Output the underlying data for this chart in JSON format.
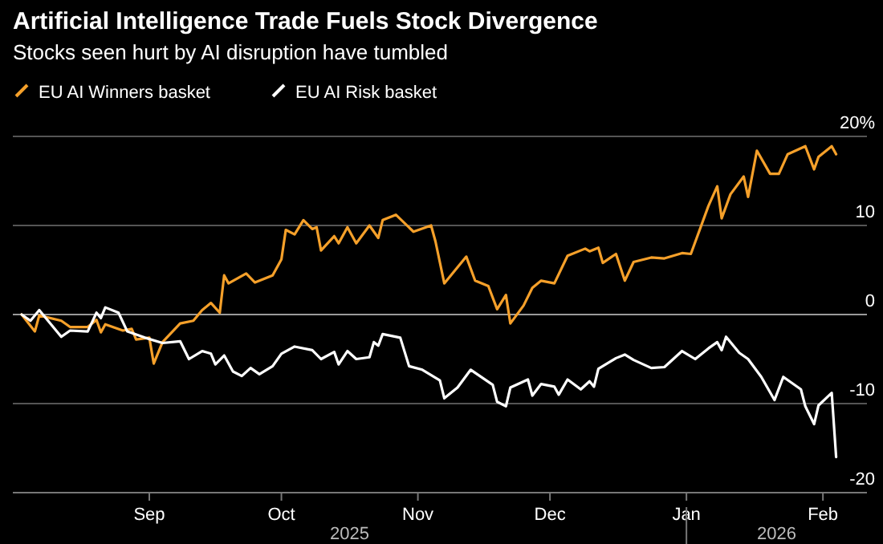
{
  "chart_data": {
    "type": "line",
    "title": "Artificial Intelligence Trade Fuels Stock Divergence",
    "subtitle": "Stocks seen hurt by AI disruption have tumbled",
    "annotations": [
      "2025",
      "2026"
    ],
    "legend": "top left",
    "grid": "y",
    "line_style": "solid",
    "marker": "none",
    "xlim": [
      "2025-08-01",
      "2026-02-11"
    ],
    "xticks": [
      {
        "value": "2025-09-01",
        "label": "Sep"
      },
      {
        "value": "2025-10-01",
        "label": "Oct"
      },
      {
        "value": "2025-11-01",
        "label": "Nov"
      },
      {
        "value": "2025-12-01",
        "label": "Dec"
      },
      {
        "value": "2026-01-01",
        "label": "Jan"
      },
      {
        "value": "2026-02-01",
        "label": "Feb"
      }
    ],
    "ylim": [
      -20,
      20
    ],
    "yticks": [
      {
        "value": 20,
        "label": "20%"
      },
      10,
      0,
      -10,
      -20
    ],
    "series": [
      {
        "name": "EU AI Winners basket",
        "color": "#f5a02a",
        "x": [
          "2025-08-03",
          "2025-08-06",
          "2025-08-07",
          "2025-08-12",
          "2025-08-14",
          "2025-08-18",
          "2025-08-20",
          "2025-08-21",
          "2025-08-22",
          "2025-08-26",
          "2025-08-28",
          "2025-08-29",
          "2025-09-01",
          "2025-09-02",
          "2025-09-04",
          "2025-09-08",
          "2025-09-11",
          "2025-09-13",
          "2025-09-15",
          "2025-09-17",
          "2025-09-18",
          "2025-09-19",
          "2025-09-23",
          "2025-09-25",
          "2025-09-29",
          "2025-10-01",
          "2025-10-02",
          "2025-10-04",
          "2025-10-06",
          "2025-10-08",
          "2025-10-09",
          "2025-10-10",
          "2025-10-13",
          "2025-10-14",
          "2025-10-16",
          "2025-10-18",
          "2025-10-21",
          "2025-10-23",
          "2025-10-24",
          "2025-10-27",
          "2025-10-31",
          "2025-11-04",
          "2025-11-05",
          "2025-11-07",
          "2025-11-12",
          "2025-11-14",
          "2025-11-17",
          "2025-11-19",
          "2025-11-21",
          "2025-11-22",
          "2025-11-25",
          "2025-11-27",
          "2025-11-29",
          "2025-12-02",
          "2025-12-05",
          "2025-12-09",
          "2025-12-10",
          "2025-12-12",
          "2025-12-13",
          "2025-12-16",
          "2025-12-18",
          "2025-12-20",
          "2025-12-24",
          "2025-12-27",
          "2025-12-31",
          "2026-01-02",
          "2026-01-06",
          "2026-01-08",
          "2026-01-09",
          "2026-01-11",
          "2026-01-14",
          "2026-01-15",
          "2026-01-17",
          "2026-01-20",
          "2026-01-22",
          "2026-01-24",
          "2026-01-28",
          "2026-01-30",
          "2026-01-31",
          "2026-02-03",
          "2026-02-04"
        ],
        "values": [
          0,
          -1.9,
          -0.1,
          -0.7,
          -1.4,
          -1.4,
          -0.6,
          -2,
          -1.1,
          -1.8,
          -1.6,
          -2.8,
          -2.6,
          -5.5,
          -3.1,
          -1,
          -0.7,
          0.5,
          1.3,
          0.2,
          4.4,
          3.5,
          4.6,
          3.6,
          4.4,
          6.2,
          9.5,
          9,
          10.6,
          9.6,
          9.8,
          7.2,
          8.8,
          8,
          9.8,
          8,
          10,
          8.6,
          10.6,
          11.2,
          9.3,
          10,
          8.2,
          3.5,
          6.5,
          3.8,
          3.2,
          0.6,
          2.2,
          -1,
          1,
          3,
          3.8,
          3.5,
          6.6,
          7.4,
          7.1,
          7.5,
          5.8,
          6.8,
          3.8,
          5.9,
          6.4,
          6.3,
          6.9,
          6.8,
          12.2,
          14.4,
          10.8,
          13.5,
          15.5,
          13.2,
          18.4,
          15.8,
          15.8,
          18,
          18.9,
          16.3,
          17.7,
          18.9,
          18
        ]
      },
      {
        "name": "EU AI Risk basket",
        "color": "#ffffff",
        "x": [
          "2025-08-03",
          "2025-08-05",
          "2025-08-07",
          "2025-08-12",
          "2025-08-14",
          "2025-08-18",
          "2025-08-20",
          "2025-08-21",
          "2025-08-22",
          "2025-08-25",
          "2025-08-27",
          "2025-08-31",
          "2025-09-04",
          "2025-09-08",
          "2025-09-10",
          "2025-09-13",
          "2025-09-15",
          "2025-09-16",
          "2025-09-18",
          "2025-09-20",
          "2025-09-22",
          "2025-09-24",
          "2025-09-26",
          "2025-09-29",
          "2025-10-01",
          "2025-10-04",
          "2025-10-08",
          "2025-10-10",
          "2025-10-13",
          "2025-10-14",
          "2025-10-16",
          "2025-10-18",
          "2025-10-21",
          "2025-10-22",
          "2025-10-23",
          "2025-10-24",
          "2025-10-28",
          "2025-10-30",
          "2025-11-02",
          "2025-11-06",
          "2025-11-07",
          "2025-11-10",
          "2025-11-13",
          "2025-11-18",
          "2025-11-19",
          "2025-11-21",
          "2025-11-22",
          "2025-11-26",
          "2025-11-27",
          "2025-11-29",
          "2025-12-02",
          "2025-12-03",
          "2025-12-05",
          "2025-12-08",
          "2025-12-10",
          "2025-12-11",
          "2025-12-12",
          "2025-12-16",
          "2025-12-18",
          "2025-12-20",
          "2025-12-24",
          "2025-12-27",
          "2025-12-31",
          "2026-01-03",
          "2026-01-06",
          "2026-01-08",
          "2026-01-09",
          "2026-01-10",
          "2026-01-13",
          "2026-01-15",
          "2026-01-18",
          "2026-01-21",
          "2026-01-23",
          "2026-01-27",
          "2026-01-28",
          "2026-01-30",
          "2026-01-31",
          "2026-02-03",
          "2026-02-04"
        ],
        "values": [
          0,
          -0.7,
          0.5,
          -2.5,
          -1.8,
          -1.9,
          0.2,
          -0.4,
          0.8,
          0.2,
          -1.9,
          -2.6,
          -3.2,
          -3,
          -5,
          -4.1,
          -4.4,
          -5.6,
          -4.6,
          -6.4,
          -6.9,
          -6,
          -6.7,
          -5.8,
          -4.4,
          -3.6,
          -4,
          -5,
          -4.2,
          -5.6,
          -4.1,
          -5,
          -4.8,
          -3.1,
          -3.5,
          -2.2,
          -2.6,
          -5.8,
          -6.2,
          -7.4,
          -9.4,
          -8.2,
          -6.2,
          -7.9,
          -9.8,
          -10.3,
          -8.2,
          -7.3,
          -9.1,
          -7.8,
          -8.1,
          -9,
          -7.3,
          -8.4,
          -7.5,
          -8.1,
          -6.1,
          -4.9,
          -4.5,
          -5.1,
          -6,
          -5.9,
          -4.1,
          -5,
          -3.8,
          -3.1,
          -4,
          -2.5,
          -4.3,
          -5,
          -7,
          -9.6,
          -7,
          -8.4,
          -10.3,
          -12.3,
          -10.2,
          -8.8,
          -16
        ]
      }
    ]
  }
}
